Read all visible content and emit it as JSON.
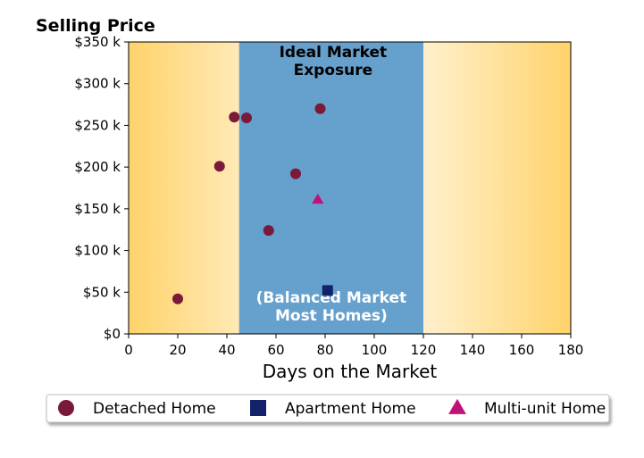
{
  "chart_data": {
    "type": "scatter",
    "title": "Selling Price",
    "xlabel": "Days on the Market",
    "ylabel": "",
    "xlim": [
      0,
      180
    ],
    "ylim": [
      0,
      350000
    ],
    "x_ticks": [
      0,
      20,
      40,
      60,
      80,
      100,
      120,
      140,
      160,
      180
    ],
    "x_tick_labels": [
      "0",
      "20",
      "40",
      "60",
      "80",
      "100",
      "120",
      "140",
      "160",
      "180"
    ],
    "y_ticks": [
      0,
      50000,
      100000,
      150000,
      200000,
      250000,
      300000,
      350000
    ],
    "y_tick_labels": [
      "$0",
      "$50 k",
      "$100 k",
      "$150 k",
      "$200 k",
      "$250 k",
      "$300 k",
      "$350 k"
    ],
    "grid": false,
    "legend_position": "bottom",
    "zone": {
      "x_range": [
        45,
        120
      ],
      "color": "#66a0cc",
      "top_label": "Ideal Market\nExposure",
      "bottom_label": "(Balanced Market\nMost Homes)",
      "top_label_color": "#000000",
      "bottom_label_color": "#ffffff"
    },
    "background_gradient": {
      "edge_color": "#ffd36b",
      "center_color": "#ffffff"
    },
    "series": [
      {
        "name": "Detached Home",
        "marker": "circle",
        "color": "#7a1a3a",
        "points": [
          {
            "x": 20,
            "y": 42000
          },
          {
            "x": 37,
            "y": 201000
          },
          {
            "x": 43,
            "y": 260000
          },
          {
            "x": 48,
            "y": 259000
          },
          {
            "x": 57,
            "y": 124000
          },
          {
            "x": 68,
            "y": 192000
          },
          {
            "x": 78,
            "y": 270000
          }
        ]
      },
      {
        "name": "Apartment Home",
        "marker": "square",
        "color": "#13226b",
        "points": [
          {
            "x": 81,
            "y": 52000
          }
        ]
      },
      {
        "name": "Multi-unit Home",
        "marker": "triangle",
        "color": "#c0137a",
        "points": [
          {
            "x": 77,
            "y": 161000
          }
        ]
      }
    ]
  }
}
